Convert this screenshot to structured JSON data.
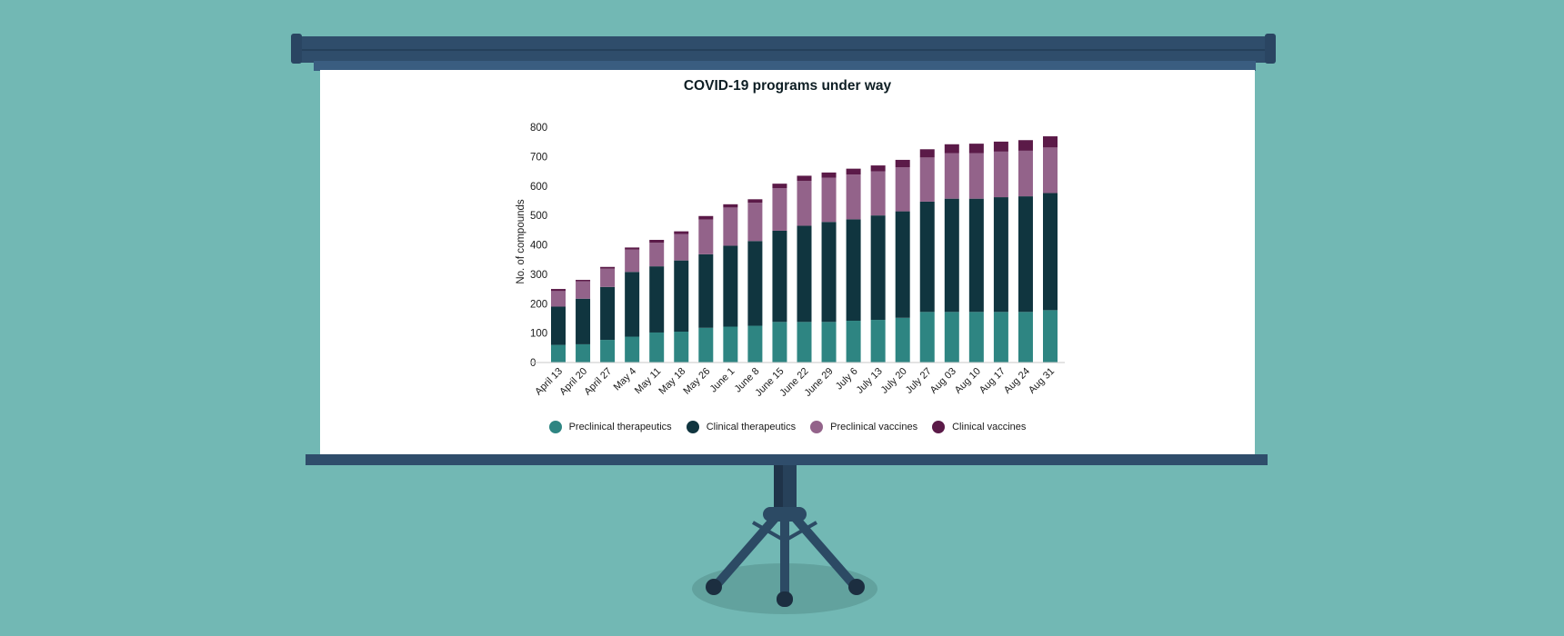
{
  "chart_data": {
    "type": "bar",
    "stacked": true,
    "title": "COVID-19 programs under way",
    "xlabel": "",
    "ylabel": "No. of compounds",
    "ylim": [
      0,
      800
    ],
    "yticks": [
      0,
      100,
      200,
      300,
      400,
      500,
      600,
      700,
      800
    ],
    "grid": false,
    "legend_position": "bottom",
    "categories": [
      "April 13",
      "April 20",
      "April 27",
      "May 4",
      "May 11",
      "May 18",
      "May 26",
      "June 1",
      "June 8",
      "June 15",
      "June 22",
      "June 29",
      "July 6",
      "July 13",
      "July 20",
      "July 27",
      "Aug 03",
      "Aug 10",
      "Aug 17",
      "Aug 24",
      "Aug 31"
    ],
    "series": [
      {
        "name": "Preclinical therapeutics",
        "color": "#2e8582",
        "values": [
          60,
          62,
          77,
          88,
          102,
          105,
          118,
          122,
          125,
          138,
          138,
          138,
          142,
          145,
          152,
          172,
          172,
          172,
          172,
          172,
          178
        ]
      },
      {
        "name": "Clinical therapeutics",
        "color": "#10353f",
        "values": [
          130,
          155,
          180,
          220,
          225,
          242,
          250,
          275,
          288,
          310,
          327,
          340,
          345,
          355,
          362,
          375,
          385,
          385,
          390,
          393,
          398
        ]
      },
      {
        "name": "Preclinical vaccines",
        "color": "#93638a",
        "values": [
          53,
          59,
          62,
          76,
          80,
          90,
          118,
          130,
          130,
          145,
          152,
          150,
          152,
          150,
          150,
          150,
          155,
          155,
          155,
          155,
          155
        ]
      },
      {
        "name": "Clinical vaccines",
        "color": "#5b1a48",
        "values": [
          7,
          5,
          6,
          7,
          10,
          9,
          12,
          11,
          12,
          15,
          18,
          18,
          20,
          20,
          25,
          28,
          30,
          32,
          34,
          36,
          38
        ]
      }
    ]
  }
}
